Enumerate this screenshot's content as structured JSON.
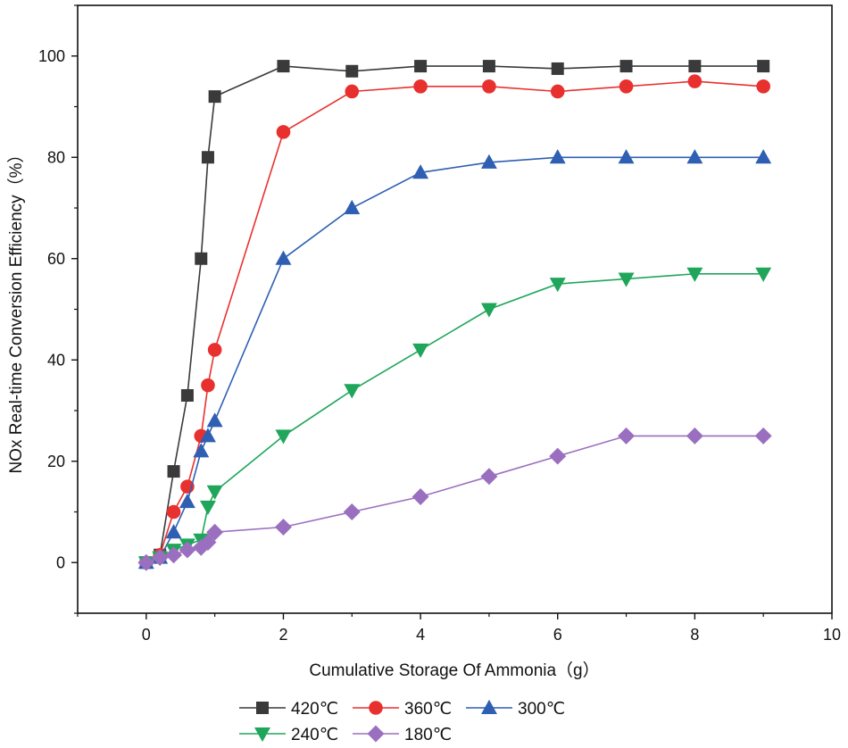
{
  "chart_data": {
    "type": "line",
    "title": "",
    "xlabel": "Cumulative Storage Of Ammonia（g）",
    "ylabel": "NOx Real-time Conversion Efficiency（%）",
    "xlim": [
      -1,
      10
    ],
    "ylim": [
      -10,
      110
    ],
    "xticks": [
      0,
      2,
      4,
      6,
      8,
      10
    ],
    "yticks": [
      0,
      20,
      40,
      60,
      80,
      100
    ],
    "xtick_labels": [
      "0",
      "2",
      "4",
      "6",
      "8",
      "10"
    ],
    "ytick_labels": [
      "0",
      "20",
      "40",
      "60",
      "80",
      "100"
    ],
    "grid": false,
    "legend_position": "bottom",
    "series": [
      {
        "name": "420℃",
        "color": "#3a3a3a",
        "marker": "square",
        "points": [
          [
            0,
            0
          ],
          [
            0.2,
            1.5
          ],
          [
            0.4,
            18
          ],
          [
            0.6,
            33
          ],
          [
            0.8,
            60
          ],
          [
            0.9,
            80
          ],
          [
            1,
            92
          ],
          [
            2,
            98
          ],
          [
            3,
            97
          ],
          [
            4,
            98
          ],
          [
            5,
            98
          ],
          [
            6,
            97.5
          ],
          [
            7,
            98
          ],
          [
            8,
            98
          ],
          [
            9,
            98
          ]
        ]
      },
      {
        "name": "360℃",
        "color": "#e8312f",
        "marker": "circle",
        "points": [
          [
            0,
            0
          ],
          [
            0.2,
            1.5
          ],
          [
            0.4,
            10
          ],
          [
            0.6,
            15
          ],
          [
            0.8,
            25
          ],
          [
            0.9,
            35
          ],
          [
            1,
            42
          ],
          [
            2,
            85
          ],
          [
            3,
            93
          ],
          [
            4,
            94
          ],
          [
            5,
            94
          ],
          [
            6,
            93
          ],
          [
            7,
            94
          ],
          [
            8,
            95
          ],
          [
            9,
            94
          ]
        ]
      },
      {
        "name": "300℃",
        "color": "#2f5fb3",
        "marker": "triangle-up",
        "points": [
          [
            0,
            0
          ],
          [
            0.2,
            1
          ],
          [
            0.4,
            6
          ],
          [
            0.6,
            12
          ],
          [
            0.8,
            22
          ],
          [
            0.9,
            25
          ],
          [
            1,
            28
          ],
          [
            2,
            60
          ],
          [
            3,
            70
          ],
          [
            4,
            77
          ],
          [
            5,
            79
          ],
          [
            6,
            80
          ],
          [
            7,
            80
          ],
          [
            8,
            80
          ],
          [
            9,
            80
          ]
        ]
      },
      {
        "name": "240℃",
        "color": "#1fa65a",
        "marker": "triangle-down",
        "points": [
          [
            0,
            0
          ],
          [
            0.2,
            1
          ],
          [
            0.4,
            2.5
          ],
          [
            0.6,
            3.5
          ],
          [
            0.8,
            4.5
          ],
          [
            0.9,
            11
          ],
          [
            1,
            14
          ],
          [
            2,
            25
          ],
          [
            3,
            34
          ],
          [
            4,
            42
          ],
          [
            5,
            50
          ],
          [
            6,
            55
          ],
          [
            7,
            56
          ],
          [
            8,
            57
          ],
          [
            9,
            57
          ]
        ]
      },
      {
        "name": "180℃",
        "color": "#9b6fc0",
        "marker": "diamond",
        "points": [
          [
            0,
            0
          ],
          [
            0.2,
            1
          ],
          [
            0.4,
            1.5
          ],
          [
            0.6,
            2.5
          ],
          [
            0.8,
            3
          ],
          [
            0.9,
            4
          ],
          [
            1,
            6
          ],
          [
            2,
            7
          ],
          [
            3,
            10
          ],
          [
            4,
            13
          ],
          [
            5,
            17
          ],
          [
            6,
            21
          ],
          [
            7,
            25
          ],
          [
            8,
            25
          ],
          [
            9,
            25
          ]
        ]
      }
    ]
  }
}
